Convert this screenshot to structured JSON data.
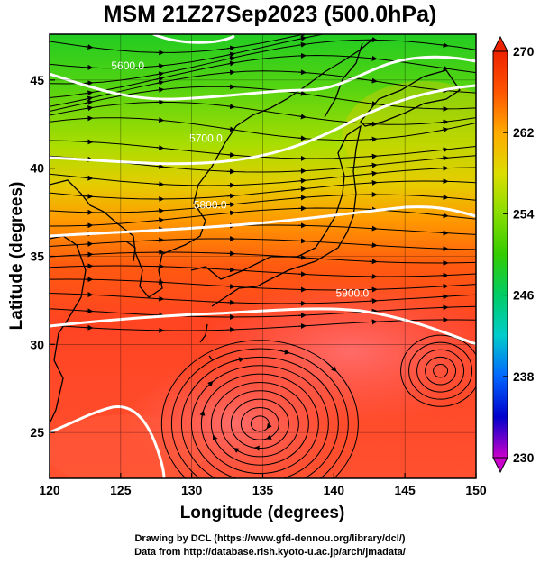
{
  "title": "MSM 21Z27Sep2023 (500.0hPa)",
  "chart_data": {
    "type": "heatmap",
    "title": "MSM 21Z27Sep2023 (500.0hPa)",
    "xlabel": "Longitude (degrees)",
    "ylabel": "Latitude (degrees)",
    "xlim": [
      120,
      150
    ],
    "ylim": [
      22.4,
      47.6
    ],
    "xticks": [
      "120",
      "125",
      "130",
      "135",
      "140",
      "145",
      "150"
    ],
    "yticks": [
      "25",
      "30",
      "35",
      "40",
      "45"
    ],
    "xtick_values": [
      120,
      125,
      130,
      135,
      140,
      145,
      150
    ],
    "ytick_values": [
      25,
      30,
      35,
      40,
      45
    ],
    "grid": true,
    "colorbar": {
      "min": 230,
      "max": 270,
      "labels": [
        "270",
        "262",
        "254",
        "246",
        "238",
        "230"
      ],
      "label_values": [
        270,
        262,
        254,
        246,
        238,
        230
      ],
      "colors": [
        "#cc00cc",
        "#0000cc",
        "#0066ff",
        "#00cccc",
        "#00cc66",
        "#33cc00",
        "#88dd00",
        "#dddd00",
        "#ffaa00",
        "#ff5500",
        "#ee2200"
      ]
    },
    "contours": [
      {
        "label": "5600.0",
        "lon": 125.5,
        "lat": 45.6
      },
      {
        "label": "5700.0",
        "lon": 131.0,
        "lat": 41.5
      },
      {
        "label": "5800.0",
        "lon": 131.3,
        "lat": 37.7
      },
      {
        "label": "5900.0",
        "lon": 141.3,
        "lat": 32.7
      }
    ],
    "vortex_center": {
      "lon": 134.8,
      "lat": 25.5
    }
  },
  "footer": {
    "line1": "Drawing by DCL (https://www.gfd-dennou.org/library/dcl/)",
    "line2": "Data from http://database.rish.kyoto-u.ac.jp/arch/jmadata/"
  },
  "colors": {
    "contour": "#ffffff",
    "streamline": "#000000",
    "coast": "#000000"
  }
}
